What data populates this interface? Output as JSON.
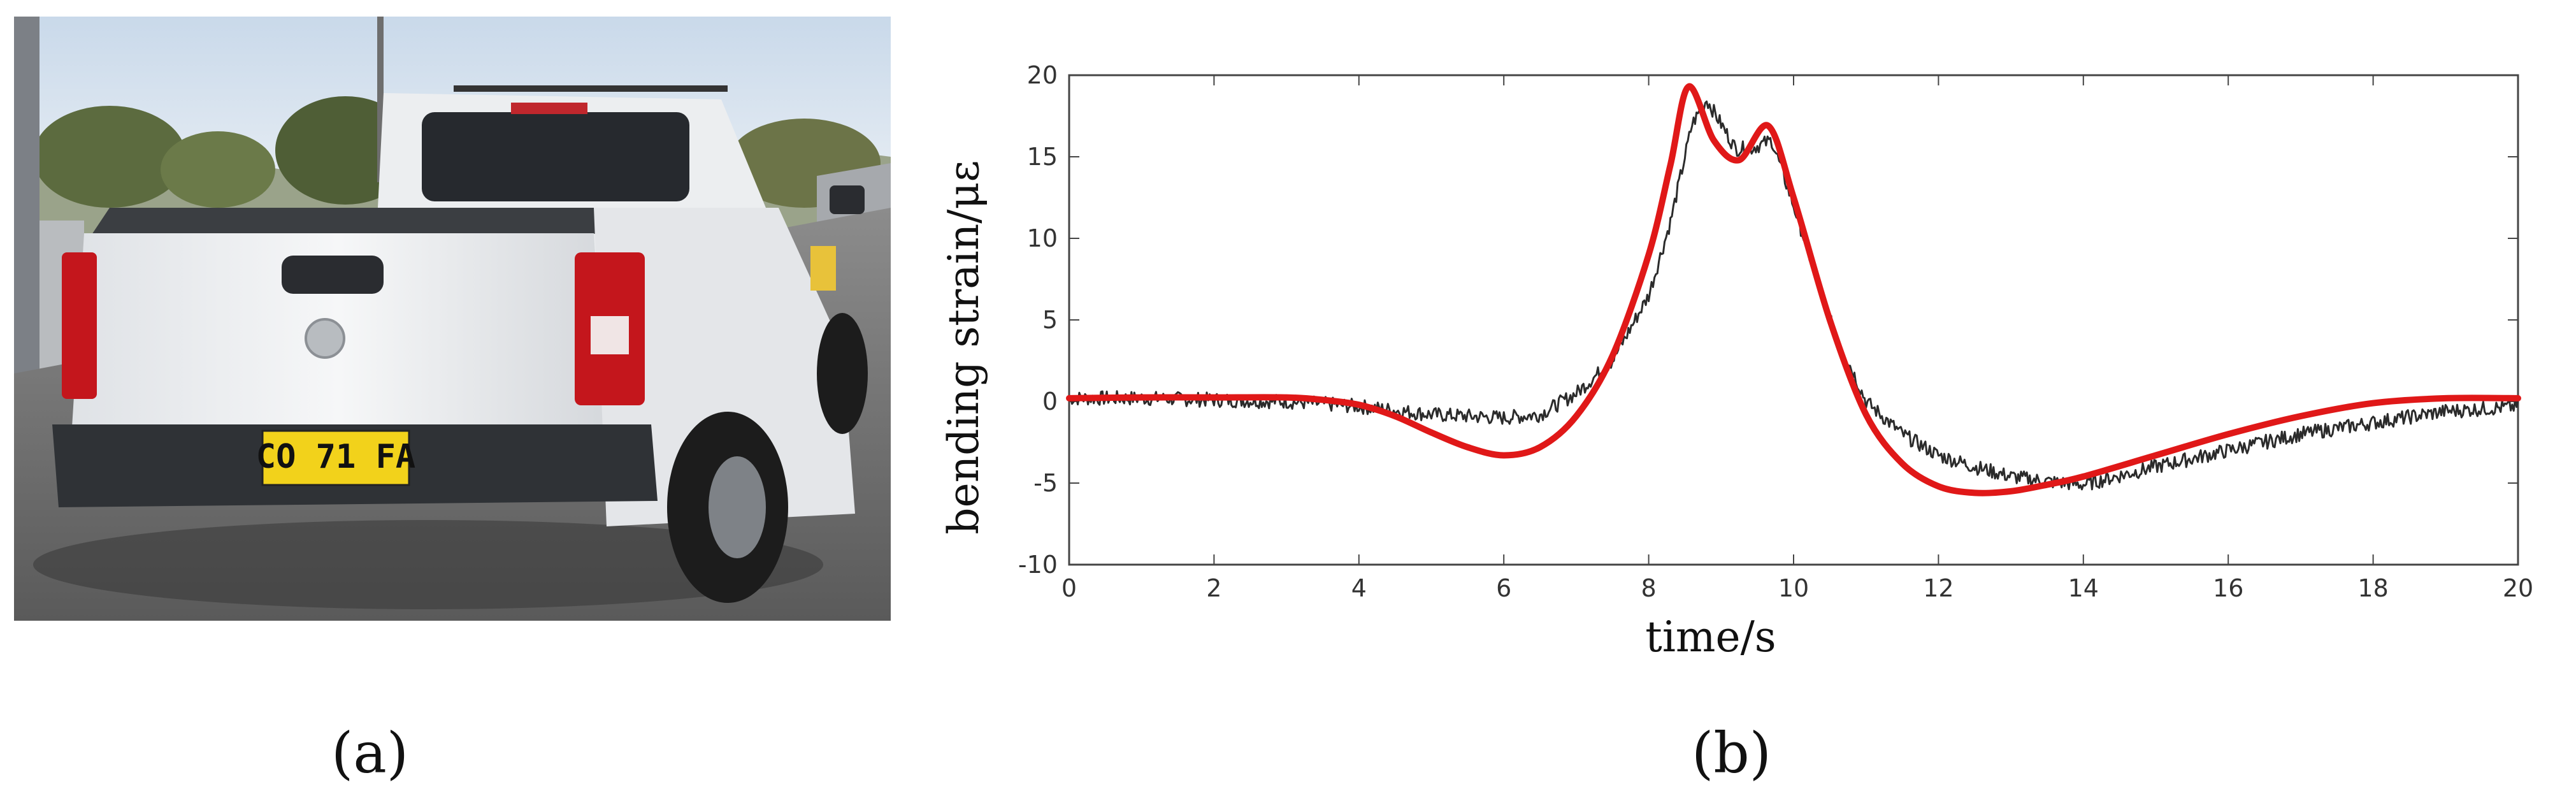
{
  "panels": {
    "a": {
      "label": "(a)",
      "plate_text": "CO 71 FA",
      "photo_type": "photograph of white pickup truck rear view"
    },
    "b": {
      "label": "(b)"
    }
  },
  "colors": {
    "measured_line": "#2b2b2b",
    "fitted_line": "#e01818",
    "axis": "#444444"
  },
  "chart_data": {
    "type": "line",
    "xlabel": "time/s",
    "ylabel": "bending strain/με",
    "xlim": [
      0,
      20
    ],
    "ylim": [
      -10,
      20
    ],
    "x_ticks": [
      0,
      2,
      4,
      6,
      8,
      10,
      12,
      14,
      16,
      18,
      20
    ],
    "y_ticks": [
      -10,
      -5,
      0,
      5,
      10,
      15,
      20
    ],
    "grid": false,
    "legend": "none",
    "series": [
      {
        "style": "noisy-thin-black",
        "x": [
          0,
          1,
          2,
          3,
          4,
          5,
          6,
          6.5,
          7,
          7.5,
          8,
          8.3,
          8.6,
          8.8,
          9.0,
          9.2,
          9.4,
          9.7,
          10.0,
          10.5,
          11.0,
          11.5,
          12.0,
          12.5,
          13.0,
          13.5,
          14.0,
          15.0,
          16.0,
          17.0,
          18.0,
          19.0,
          20.0
        ],
        "y": [
          0.2,
          0.2,
          0.1,
          0,
          -0.3,
          -0.8,
          -1.0,
          -0.8,
          0.5,
          2.5,
          6.5,
          11.0,
          17.0,
          18.5,
          17.0,
          15.5,
          15.5,
          16.0,
          12.0,
          5.0,
          0.0,
          -2.0,
          -3.3,
          -4.0,
          -4.6,
          -4.9,
          -5.1,
          -4.0,
          -3.0,
          -2.0,
          -1.3,
          -0.6,
          -0.3
        ]
      },
      {
        "style": "smooth-thick-red",
        "x": [
          0,
          1,
          2,
          3,
          3.5,
          4,
          4.5,
          5,
          5.5,
          6,
          6.5,
          7,
          7.5,
          8,
          8.3,
          8.55,
          8.9,
          9.25,
          9.65,
          10.0,
          10.5,
          11.0,
          11.5,
          12.0,
          12.5,
          13.0,
          13.5,
          14.0,
          15.0,
          16.0,
          17.0,
          18.0,
          19.0,
          20.0
        ],
        "y": [
          0.2,
          0.25,
          0.25,
          0.25,
          0.1,
          -0.2,
          -0.9,
          -1.9,
          -2.8,
          -3.3,
          -2.8,
          -0.9,
          2.8,
          9.0,
          14.5,
          19.3,
          16.0,
          14.8,
          16.9,
          12.5,
          5.0,
          -0.8,
          -3.8,
          -5.2,
          -5.6,
          -5.5,
          -5.1,
          -4.6,
          -3.3,
          -2.0,
          -0.9,
          -0.1,
          0.2,
          0.2
        ]
      }
    ]
  }
}
